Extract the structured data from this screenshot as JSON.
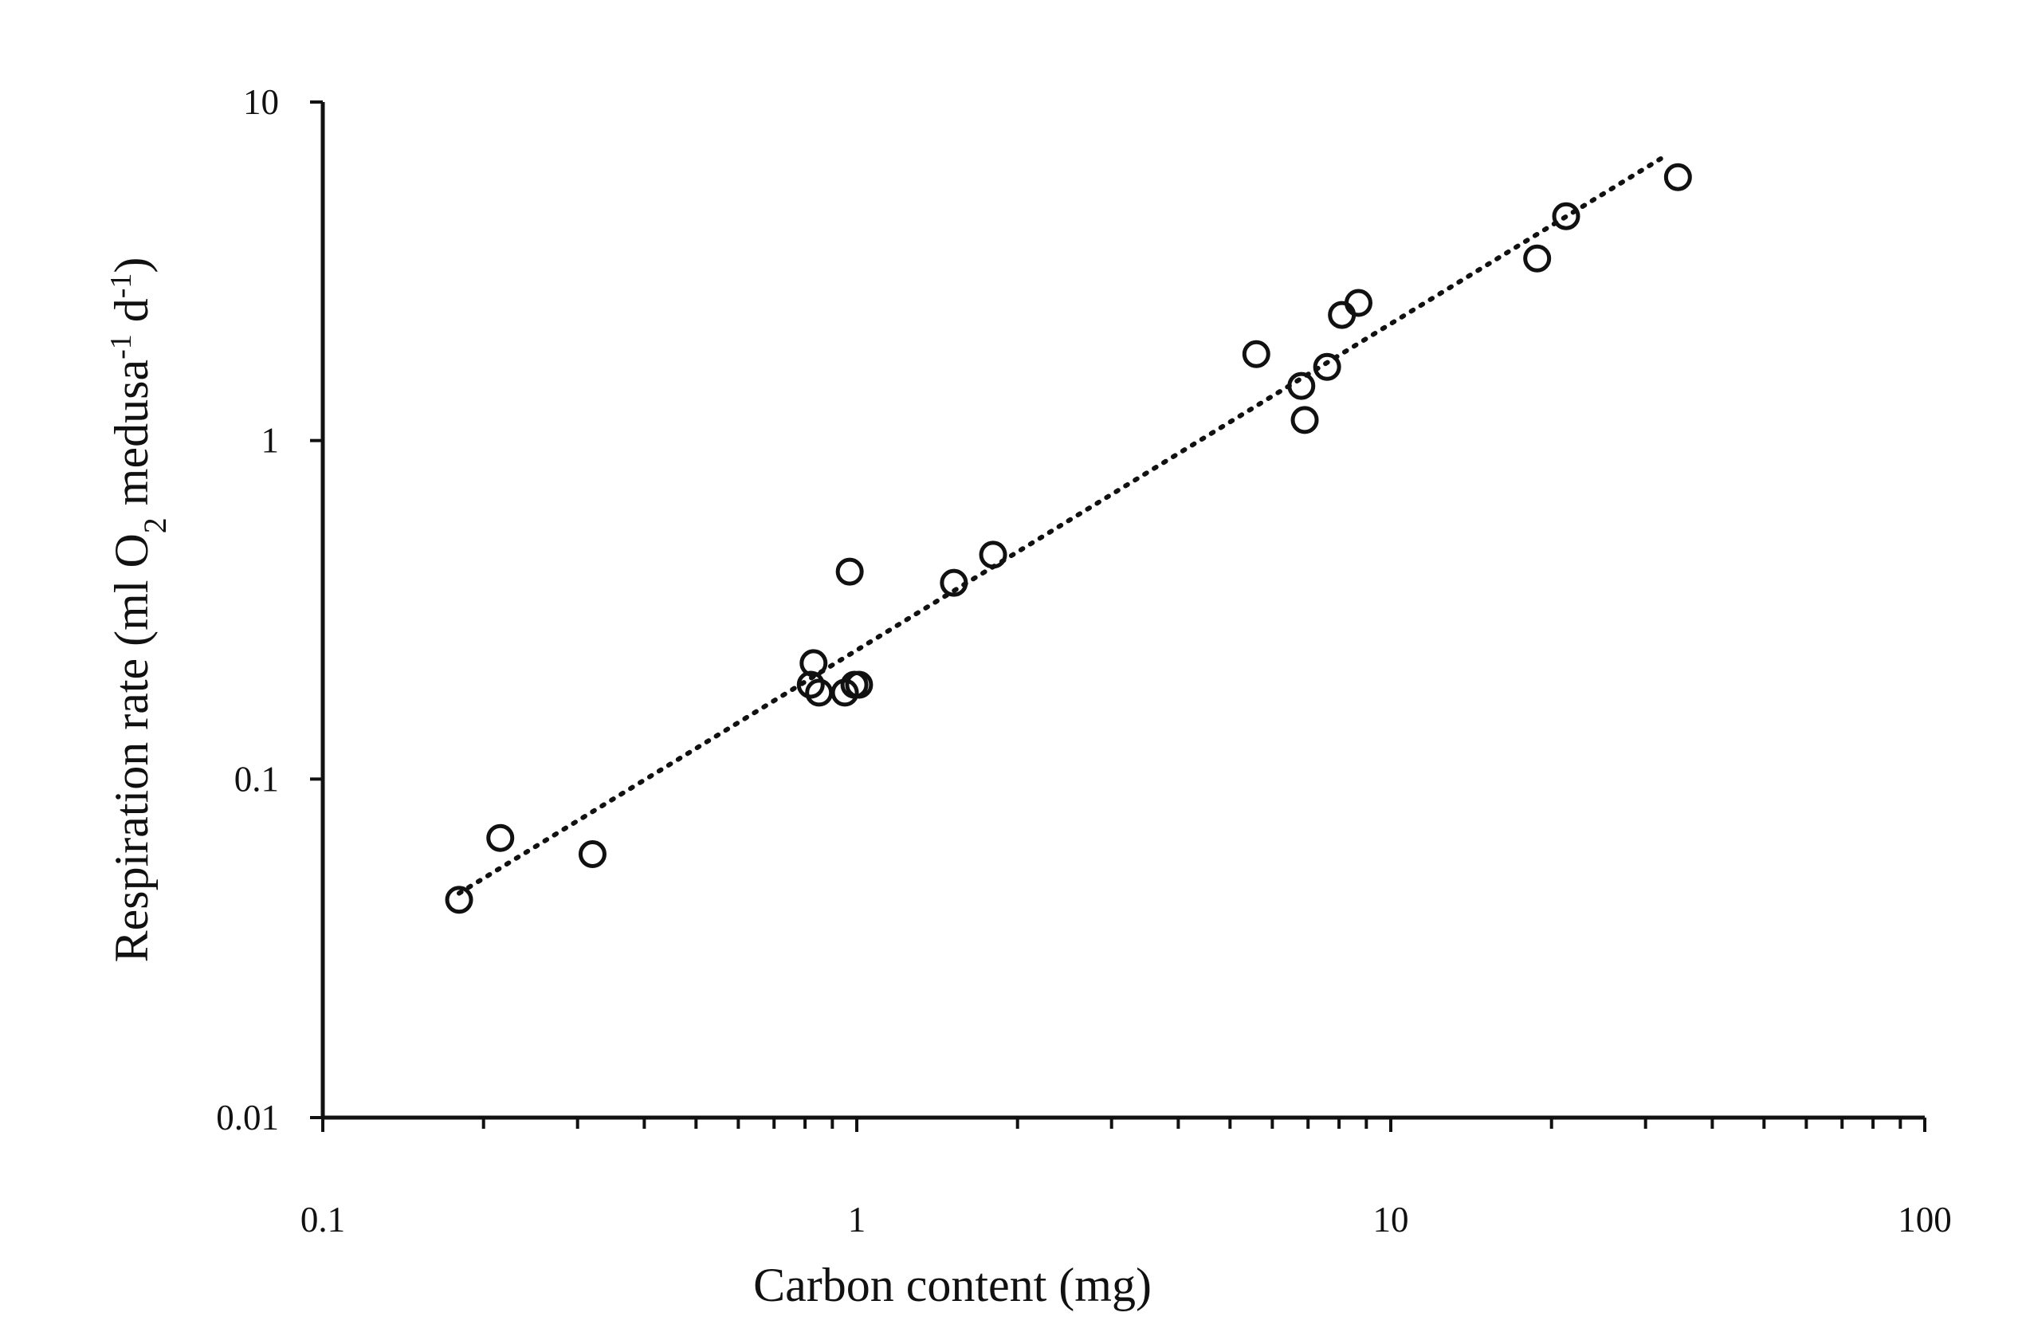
{
  "chart_data": {
    "type": "scatter",
    "xlabel": "Carbon content (mg)",
    "ylabel": {
      "parts": [
        "Respiration rate (ml O",
        "2",
        " medusa",
        "-1",
        " d",
        "-1",
        ")"
      ]
    },
    "x_scale": "log",
    "y_scale": "log",
    "xlim": [
      0.1,
      100
    ],
    "ylim": [
      0.01,
      10
    ],
    "x_ticks": [
      0.1,
      1,
      10,
      100
    ],
    "x_tick_labels": [
      "0.1",
      "1",
      "10",
      "100"
    ],
    "y_ticks": [
      0.01,
      0.1,
      1,
      10
    ],
    "y_tick_labels": [
      "0.01",
      "0.1",
      "1",
      "10"
    ],
    "grid": false,
    "legend": false,
    "marker": "open-circle",
    "points": [
      {
        "x": 0.18,
        "y": 0.044
      },
      {
        "x": 0.215,
        "y": 0.067
      },
      {
        "x": 0.32,
        "y": 0.06
      },
      {
        "x": 0.82,
        "y": 0.19
      },
      {
        "x": 0.83,
        "y": 0.22
      },
      {
        "x": 0.85,
        "y": 0.18
      },
      {
        "x": 0.95,
        "y": 0.18
      },
      {
        "x": 0.97,
        "y": 0.41
      },
      {
        "x": 0.99,
        "y": 0.19
      },
      {
        "x": 1.01,
        "y": 0.19
      },
      {
        "x": 1.52,
        "y": 0.38
      },
      {
        "x": 1.8,
        "y": 0.46
      },
      {
        "x": 5.6,
        "y": 1.8
      },
      {
        "x": 6.8,
        "y": 1.45
      },
      {
        "x": 6.9,
        "y": 1.15
      },
      {
        "x": 7.6,
        "y": 1.65
      },
      {
        "x": 8.1,
        "y": 2.35
      },
      {
        "x": 8.7,
        "y": 2.55
      },
      {
        "x": 18.8,
        "y": 3.45
      },
      {
        "x": 21.3,
        "y": 4.6
      },
      {
        "x": 34.5,
        "y": 6.0
      }
    ],
    "trendline": {
      "style": "dotted",
      "x": [
        0.18,
        33
      ],
      "y": [
        0.046,
        7.0
      ]
    }
  }
}
